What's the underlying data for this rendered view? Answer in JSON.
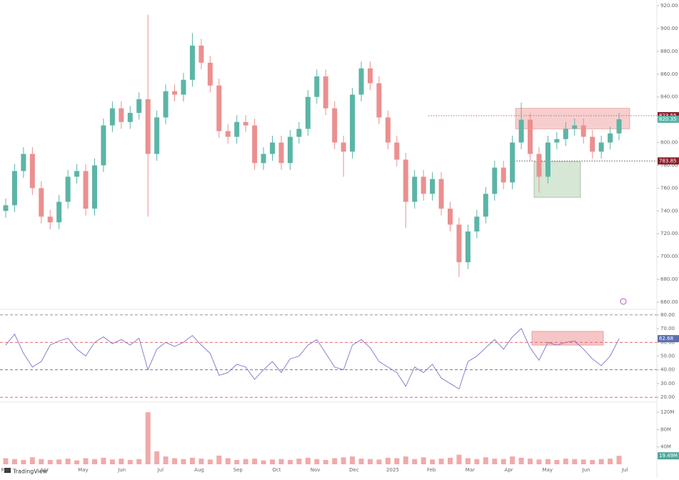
{
  "chart_data": [
    {
      "type": "candlestick",
      "x_labels": [
        "Mar",
        "Apr",
        "May",
        "Jun",
        "Jul",
        "Aug",
        "Sep",
        "Oct",
        "Nov",
        "Dec",
        "2025",
        "Feb",
        "Mar",
        "Apr",
        "May",
        "Jun",
        "Jul"
      ],
      "open": [
        740,
        745,
        775,
        790,
        760,
        735,
        730,
        748,
        770,
        775,
        742,
        780,
        815,
        830,
        818,
        826,
        838,
        790,
        822,
        845,
        842,
        855,
        885,
        870,
        850,
        810,
        805,
        818,
        815,
        782,
        790,
        800,
        782,
        805,
        812,
        840,
        858,
        830,
        800,
        792,
        842,
        865,
        852,
        822,
        800,
        785,
        748,
        770,
        755,
        768,
        742,
        728,
        695,
        722,
        735,
        755,
        778,
        765,
        800,
        820,
        790,
        770,
        800,
        803,
        812,
        815,
        805,
        792,
        800,
        808
      ],
      "high": [
        751,
        781,
        796,
        796,
        766,
        741,
        754,
        776,
        781,
        781,
        786,
        821,
        836,
        836,
        832,
        844,
        912,
        828,
        851,
        851,
        861,
        896,
        891,
        876,
        856,
        816,
        824,
        824,
        821,
        796,
        806,
        806,
        811,
        818,
        846,
        864,
        864,
        836,
        806,
        848,
        871,
        871,
        858,
        828,
        806,
        791,
        776,
        776,
        774,
        774,
        748,
        734,
        728,
        741,
        761,
        784,
        784,
        806,
        835,
        826,
        796,
        806,
        809,
        818,
        821,
        821,
        811,
        806,
        814,
        826
      ],
      "low": [
        734,
        739,
        769,
        754,
        729,
        724,
        724,
        742,
        764,
        736,
        736,
        774,
        809,
        812,
        812,
        820,
        735,
        784,
        816,
        836,
        836,
        849,
        864,
        844,
        804,
        799,
        799,
        809,
        776,
        776,
        784,
        776,
        776,
        799,
        806,
        834,
        824,
        794,
        770,
        786,
        836,
        846,
        816,
        794,
        779,
        725,
        742,
        749,
        749,
        736,
        722,
        682,
        689,
        716,
        729,
        749,
        759,
        759,
        794,
        784,
        756,
        764,
        794,
        797,
        806,
        799,
        786,
        786,
        794,
        802
      ],
      "close": [
        745,
        775,
        790,
        760,
        735,
        730,
        748,
        770,
        775,
        742,
        780,
        815,
        830,
        818,
        826,
        838,
        790,
        822,
        845,
        842,
        855,
        885,
        870,
        850,
        810,
        805,
        818,
        815,
        782,
        790,
        800,
        782,
        805,
        812,
        840,
        858,
        830,
        800,
        792,
        842,
        865,
        852,
        822,
        800,
        785,
        748,
        770,
        755,
        768,
        742,
        728,
        695,
        722,
        735,
        755,
        778,
        765,
        800,
        820,
        790,
        770,
        800,
        803,
        812,
        815,
        805,
        792,
        800,
        808,
        820.35
      ],
      "up_color": "#5bb5a6",
      "down_color": "#ec8f8f",
      "ylim": [
        655,
        925
      ],
      "yticks": [
        {
          "value": 660,
          "label": "660.00"
        },
        {
          "value": 680,
          "label": "680.00"
        },
        {
          "value": 700,
          "label": "700.00"
        },
        {
          "value": 720,
          "label": "720.00"
        },
        {
          "value": 740,
          "label": "740.00"
        },
        {
          "value": 760,
          "label": "760.00"
        },
        {
          "value": 780,
          "label": "780.00"
        },
        {
          "value": 800,
          "label": "800.00"
        },
        {
          "value": 820,
          "label": "820.00"
        },
        {
          "value": 840,
          "label": "840.00"
        },
        {
          "value": 860,
          "label": "860.00"
        },
        {
          "value": 880,
          "label": "880.00"
        },
        {
          "value": 900,
          "label": "900.00"
        },
        {
          "value": 920,
          "label": "920.00"
        }
      ],
      "levels": [
        {
          "value": 823.55,
          "color": "#d9534f",
          "tag": "#8b1e2b"
        },
        {
          "value": 783.85,
          "color": "#444444",
          "tag": "#8b1e2b"
        }
      ],
      "zones": [
        {
          "low": 812,
          "high": 830,
          "color": "#f6c6c6"
        },
        {
          "low": 752,
          "high": 783,
          "color": "#cfe3cf"
        }
      ]
    },
    {
      "type": "line",
      "color": "#7e74c9",
      "values": [
        58,
        66,
        52,
        42,
        46,
        58,
        61,
        63,
        55,
        50,
        60,
        64,
        59,
        62,
        58,
        63,
        40,
        55,
        60,
        57,
        60,
        65,
        58,
        52,
        36,
        38,
        44,
        42,
        33,
        40,
        46,
        38,
        48,
        50,
        58,
        62,
        52,
        42,
        40,
        58,
        62,
        56,
        46,
        42,
        38,
        28,
        42,
        38,
        44,
        34,
        30,
        26,
        46,
        50,
        56,
        62,
        55,
        64,
        70,
        56,
        47,
        60,
        58,
        60,
        61,
        55,
        48,
        43,
        50,
        62.68
      ],
      "ylim": [
        18,
        82
      ],
      "yticks": [
        {
          "value": 20,
          "label": "20.00"
        },
        {
          "value": 30,
          "label": "30.00"
        },
        {
          "value": 40,
          "label": "40.00"
        },
        {
          "value": 50,
          "label": "50.00"
        },
        {
          "value": 60,
          "label": "60.00"
        },
        {
          "value": 70,
          "label": "70.00"
        },
        {
          "value": 80,
          "label": "80.00"
        }
      ],
      "levels": [
        {
          "value": 80,
          "color": "#888888"
        },
        {
          "value": 60,
          "color": "#e05555"
        },
        {
          "value": 40,
          "color": "#666666"
        },
        {
          "value": 20,
          "color": "#e05555"
        }
      ],
      "zones": [
        {
          "low": 58,
          "high": 68,
          "color": "#f6c6c6"
        }
      ],
      "tag_color": "#5b6fb0"
    },
    {
      "type": "bar",
      "color": "#f2a9a9",
      "values": [
        14,
        12,
        10,
        16,
        12,
        10,
        11,
        13,
        9,
        14,
        12,
        15,
        11,
        13,
        10,
        12,
        120,
        30,
        18,
        14,
        12,
        15,
        13,
        11,
        20,
        14,
        10,
        12,
        13,
        9,
        11,
        12,
        10,
        13,
        15,
        12,
        10,
        14,
        16,
        18,
        13,
        12,
        11,
        15,
        14,
        18,
        12,
        16,
        11,
        13,
        15,
        22,
        14,
        12,
        16,
        13,
        12,
        18,
        15,
        13,
        11,
        12,
        10,
        13,
        12,
        11,
        10,
        12,
        13,
        19.49
      ],
      "last_value_label": "19.49M",
      "tag_color": "#4fa89a",
      "ylim": [
        0,
        140
      ],
      "yticks": [
        {
          "value": 40,
          "label": "40M"
        },
        {
          "value": 80,
          "label": "80M"
        },
        {
          "value": 120,
          "label": "120M"
        }
      ]
    }
  ],
  "footer": {
    "brand": "TradingView"
  }
}
